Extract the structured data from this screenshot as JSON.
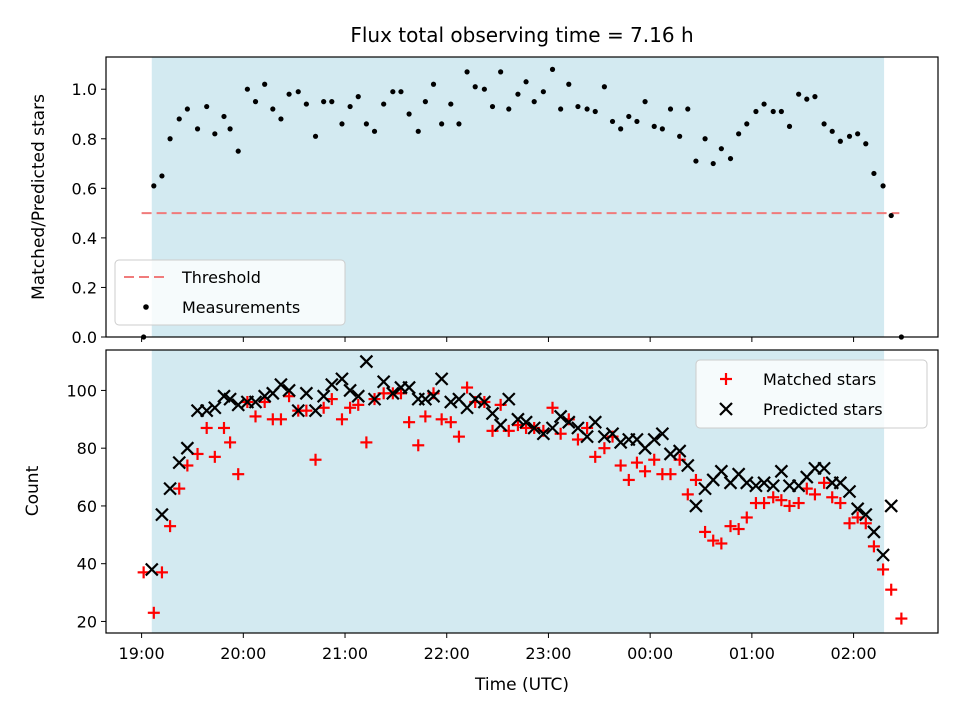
{
  "chart_data": [
    {
      "type": "scatter",
      "title": "Flux total observing time = 7.16 h",
      "ylabel": "Matched/Predicted stars",
      "ylim": [
        0,
        1.13
      ],
      "yticks": [
        "0.0",
        "0.2",
        "0.4",
        "0.6",
        "0.8",
        "1.0"
      ],
      "shaded_span_hours": [
        19.1,
        26.3
      ],
      "shade_color": "#d3eaf1",
      "threshold": {
        "name": "Threshold",
        "value": 0.5,
        "x_range": [
          19.0,
          26.45
        ],
        "color": "#f07b7b"
      },
      "series": [
        {
          "name": "Measurements",
          "color": "#000000",
          "x": [
            19.02,
            19.12,
            19.2,
            19.28,
            19.37,
            19.45,
            19.55,
            19.64,
            19.72,
            19.81,
            19.87,
            19.95,
            20.04,
            20.12,
            20.21,
            20.29,
            20.37,
            20.45,
            20.54,
            20.62,
            20.71,
            20.79,
            20.87,
            20.97,
            21.05,
            21.13,
            21.21,
            21.29,
            21.38,
            21.47,
            21.55,
            21.63,
            21.72,
            21.79,
            21.87,
            21.95,
            22.04,
            22.12,
            22.2,
            22.28,
            22.37,
            22.45,
            22.53,
            22.61,
            22.7,
            22.78,
            22.86,
            22.95,
            23.04,
            23.12,
            23.2,
            23.29,
            23.38,
            23.46,
            23.55,
            23.63,
            23.71,
            23.79,
            23.87,
            23.95,
            24.04,
            24.12,
            24.2,
            24.29,
            24.37,
            24.45,
            24.54,
            24.62,
            24.7,
            24.79,
            24.87,
            24.95,
            25.04,
            25.12,
            25.21,
            25.29,
            25.37,
            25.46,
            25.54,
            25.62,
            25.71,
            25.79,
            25.87,
            25.96,
            26.04,
            26.12,
            26.2,
            26.29,
            26.37,
            26.47
          ],
          "y": [
            0.0,
            0.61,
            0.65,
            0.8,
            0.88,
            0.92,
            0.84,
            0.93,
            0.82,
            0.89,
            0.84,
            0.75,
            1.0,
            0.95,
            1.02,
            0.92,
            0.88,
            0.98,
            0.99,
            0.94,
            0.81,
            0.95,
            0.95,
            0.86,
            0.93,
            0.97,
            0.86,
            0.83,
            0.94,
            0.99,
            0.99,
            0.9,
            0.83,
            0.95,
            1.02,
            0.86,
            0.94,
            0.86,
            1.07,
            1.01,
            1.0,
            0.93,
            1.07,
            0.92,
            0.98,
            1.03,
            0.95,
            0.99,
            1.08,
            0.92,
            1.02,
            0.93,
            0.92,
            0.91,
            1.01,
            0.87,
            0.84,
            0.89,
            0.87,
            0.95,
            0.85,
            0.84,
            0.92,
            0.81,
            0.92,
            0.71,
            0.8,
            0.7,
            0.76,
            0.72,
            0.82,
            0.86,
            0.91,
            0.94,
            0.91,
            0.91,
            0.85,
            0.98,
            0.96,
            0.97,
            0.86,
            0.83,
            0.79,
            0.81,
            0.82,
            0.78,
            0.66,
            0.61,
            0.49,
            0.0
          ]
        }
      ],
      "legend": {
        "position": "lower-left",
        "entries": [
          "Threshold",
          "Measurements"
        ]
      }
    },
    {
      "type": "scatter",
      "xlabel": "Time (UTC)",
      "ylabel": "Count",
      "ylim": [
        16,
        114
      ],
      "xlim": [
        18.65,
        26.83
      ],
      "x_ticks": [
        {
          "value": 19,
          "label": "19:00"
        },
        {
          "value": 20,
          "label": "20:00"
        },
        {
          "value": 21,
          "label": "21:00"
        },
        {
          "value": 22,
          "label": "22:00"
        },
        {
          "value": 23,
          "label": "23:00"
        },
        {
          "value": 24,
          "label": "00:00"
        },
        {
          "value": 25,
          "label": "01:00"
        },
        {
          "value": 26,
          "label": "02:00"
        }
      ],
      "yticks": [
        "20",
        "40",
        "60",
        "80",
        "100"
      ],
      "shaded_span_hours": [
        19.1,
        26.3
      ],
      "series": [
        {
          "name": "Matched stars",
          "marker": "plus",
          "color": "#ff0000",
          "x": [
            19.02,
            19.12,
            19.2,
            19.28,
            19.37,
            19.45,
            19.55,
            19.64,
            19.72,
            19.81,
            19.87,
            19.95,
            20.04,
            20.12,
            20.21,
            20.29,
            20.37,
            20.45,
            20.54,
            20.62,
            20.71,
            20.79,
            20.87,
            20.97,
            21.05,
            21.13,
            21.21,
            21.29,
            21.38,
            21.47,
            21.55,
            21.63,
            21.72,
            21.79,
            21.87,
            21.95,
            22.04,
            22.12,
            22.2,
            22.28,
            22.37,
            22.45,
            22.53,
            22.61,
            22.7,
            22.78,
            22.86,
            22.95,
            23.04,
            23.12,
            23.2,
            23.29,
            23.38,
            23.46,
            23.55,
            23.63,
            23.71,
            23.79,
            23.87,
            23.95,
            24.04,
            24.12,
            24.2,
            24.29,
            24.37,
            24.45,
            24.54,
            24.62,
            24.7,
            24.79,
            24.87,
            24.95,
            25.04,
            25.12,
            25.21,
            25.29,
            25.37,
            25.46,
            25.54,
            25.62,
            25.71,
            25.79,
            25.87,
            25.96,
            26.04,
            26.12,
            26.2,
            26.29,
            26.37,
            26.47
          ],
          "y": [
            37,
            23,
            37,
            53,
            66,
            74,
            78,
            87,
            77,
            87,
            82,
            71,
            96,
            91,
            96,
            90,
            90,
            98,
            93,
            93,
            76,
            94,
            97,
            90,
            94,
            95,
            82,
            97,
            99,
            99,
            99,
            89,
            81,
            91,
            99,
            90,
            89,
            84,
            101,
            96,
            96,
            86,
            95,
            86,
            88,
            87,
            87,
            86,
            94,
            85,
            90,
            83,
            87,
            77,
            80,
            84,
            74,
            69,
            75,
            72,
            76,
            71,
            71,
            76,
            64,
            69,
            51,
            48,
            47,
            53,
            52,
            56,
            61,
            61,
            63,
            62,
            60,
            61,
            66,
            64,
            68,
            63,
            61,
            54,
            56,
            54,
            46,
            38,
            31,
            21
          ]
        },
        {
          "name": "Predicted stars",
          "marker": "x",
          "color": "#000000",
          "x": [
            19.1,
            19.2,
            19.28,
            19.37,
            19.45,
            19.55,
            19.64,
            19.72,
            19.81,
            19.87,
            19.95,
            20.04,
            20.12,
            20.21,
            20.29,
            20.37,
            20.45,
            20.54,
            20.62,
            20.71,
            20.79,
            20.87,
            20.97,
            21.05,
            21.13,
            21.21,
            21.29,
            21.38,
            21.47,
            21.55,
            21.63,
            21.72,
            21.79,
            21.87,
            21.95,
            22.04,
            22.12,
            22.2,
            22.28,
            22.37,
            22.45,
            22.53,
            22.61,
            22.7,
            22.78,
            22.86,
            22.95,
            23.04,
            23.12,
            23.2,
            23.29,
            23.38,
            23.46,
            23.55,
            23.63,
            23.71,
            23.79,
            23.87,
            23.95,
            24.04,
            24.12,
            24.2,
            24.29,
            24.37,
            24.45,
            24.54,
            24.62,
            24.7,
            24.79,
            24.87,
            24.95,
            25.04,
            25.12,
            25.21,
            25.29,
            25.37,
            25.46,
            25.54,
            25.62,
            25.71,
            25.79,
            25.87,
            25.96,
            26.04,
            26.12,
            26.2,
            26.29,
            26.37
          ],
          "y": [
            38,
            57,
            66,
            75,
            80,
            93,
            93,
            94,
            98,
            97,
            95,
            96,
            96,
            98,
            99,
            102,
            100,
            93,
            99,
            93,
            98,
            102,
            104,
            100,
            98,
            110,
            97,
            103,
            99,
            101,
            101,
            97,
            97,
            98,
            104,
            96,
            97,
            94,
            97,
            96,
            92,
            88,
            97,
            90,
            89,
            87,
            85,
            87,
            91,
            89,
            87,
            84,
            89,
            84,
            85,
            82,
            83,
            83,
            80,
            83,
            85,
            78,
            79,
            74,
            60,
            66,
            69,
            72,
            68,
            71,
            68,
            67,
            68,
            67,
            72,
            67,
            67,
            70,
            73,
            73,
            68,
            68,
            65,
            59,
            57,
            51,
            43,
            60
          ]
        }
      ],
      "legend": {
        "position": "upper-right",
        "entries": [
          "Matched stars",
          "Predicted stars"
        ]
      }
    }
  ]
}
